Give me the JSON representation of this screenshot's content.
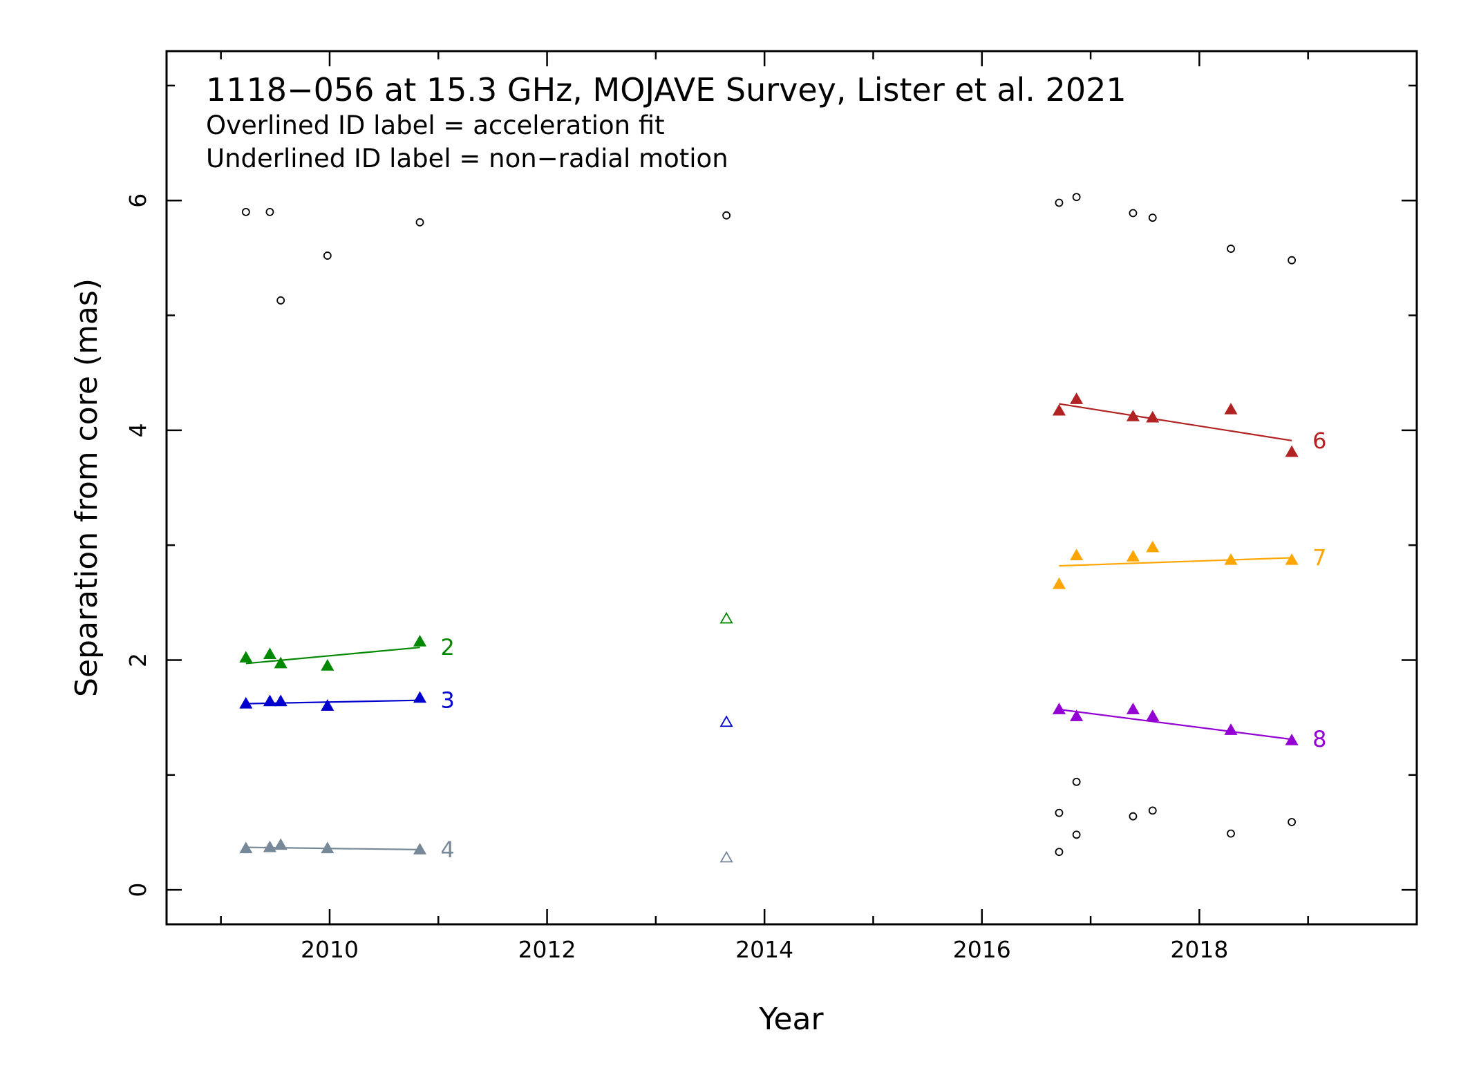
{
  "chart_data": {
    "type": "scatter",
    "title": "1118−056 at 15.3 GHz, MOJAVE Survey, Lister et al. 2021",
    "subtitle_lines": [
      "Overlined ID label = acceleration fit",
      "Underlined ID label = non−radial motion"
    ],
    "xlabel": "Year",
    "ylabel": "Separation from core (mas)",
    "xlim": [
      2008.5,
      2020.0
    ],
    "ylim": [
      -0.3,
      7.3
    ],
    "x_ticks": [
      2010,
      2012,
      2014,
      2016,
      2018
    ],
    "y_ticks": [
      0,
      2,
      4,
      6
    ],
    "x_minor_step": 1,
    "y_minor_step": 1,
    "grid": false,
    "series": [
      {
        "name": "2",
        "color": "#008800",
        "marker": "filled-triangle",
        "x": [
          2009.23,
          2009.45,
          2009.55,
          2009.98,
          2010.83
        ],
        "y": [
          2.02,
          2.05,
          1.97,
          1.95,
          2.16
        ],
        "fit": {
          "x": [
            2009.23,
            2010.83
          ],
          "y": [
            1.97,
            2.11
          ]
        }
      },
      {
        "name": "3",
        "color": "#0000cc",
        "marker": "filled-triangle",
        "x": [
          2009.23,
          2009.45,
          2009.55,
          2009.98,
          2010.83
        ],
        "y": [
          1.62,
          1.64,
          1.64,
          1.6,
          1.67
        ],
        "fit": {
          "x": [
            2009.23,
            2010.83
          ],
          "y": [
            1.62,
            1.65
          ]
        }
      },
      {
        "name": "4",
        "color": "#778899",
        "marker": "filled-triangle",
        "x": [
          2009.23,
          2009.45,
          2009.55,
          2009.98,
          2010.83
        ],
        "y": [
          0.36,
          0.37,
          0.39,
          0.36,
          0.35
        ],
        "fit": {
          "x": [
            2009.23,
            2010.83
          ],
          "y": [
            0.37,
            0.35
          ]
        }
      },
      {
        "name": "6",
        "color": "#b22222",
        "marker": "filled-triangle",
        "x": [
          2016.71,
          2016.87,
          2017.39,
          2017.57,
          2018.29,
          2018.85
        ],
        "y": [
          4.17,
          4.27,
          4.12,
          4.11,
          4.18,
          3.81
        ],
        "fit": {
          "x": [
            2016.71,
            2018.85
          ],
          "y": [
            4.23,
            3.91
          ]
        }
      },
      {
        "name": "7",
        "color": "#ffa500",
        "marker": "filled-triangle",
        "x": [
          2016.71,
          2016.87,
          2017.39,
          2017.57,
          2018.29,
          2018.85
        ],
        "y": [
          2.66,
          2.91,
          2.9,
          2.98,
          2.87,
          2.87
        ],
        "fit": {
          "x": [
            2016.71,
            2018.85
          ],
          "y": [
            2.82,
            2.89
          ]
        }
      },
      {
        "name": "8",
        "color": "#9400d3",
        "marker": "filled-triangle",
        "x": [
          2016.71,
          2016.87,
          2017.39,
          2017.57,
          2018.29,
          2018.85
        ],
        "y": [
          1.57,
          1.51,
          1.57,
          1.51,
          1.39,
          1.3
        ],
        "fit": {
          "x": [
            2016.71,
            2018.85
          ],
          "y": [
            1.57,
            1.31
          ]
        }
      }
    ],
    "unassigned_triangles": [
      {
        "x": 2013.65,
        "y": 2.36,
        "color": "#008800"
      },
      {
        "x": 2013.65,
        "y": 1.46,
        "color": "#0000cc"
      },
      {
        "x": 2013.65,
        "y": 0.28,
        "color": "#778899"
      }
    ],
    "unassociated_points": {
      "color": "#000000",
      "marker": "open-circle",
      "x": [
        2009.23,
        2009.45,
        2009.55,
        2009.98,
        2010.83,
        2013.65,
        2016.71,
        2016.87,
        2017.39,
        2017.57,
        2018.29,
        2018.85,
        2016.87,
        2016.71,
        2017.39,
        2017.57,
        2018.29,
        2018.85,
        2016.87,
        2016.71
      ],
      "y": [
        5.9,
        5.9,
        5.13,
        5.52,
        5.81,
        5.87,
        5.98,
        6.03,
        5.89,
        5.85,
        5.58,
        5.48,
        0.94,
        0.67,
        0.64,
        0.69,
        0.49,
        0.59,
        0.48,
        0.33
      ]
    }
  }
}
